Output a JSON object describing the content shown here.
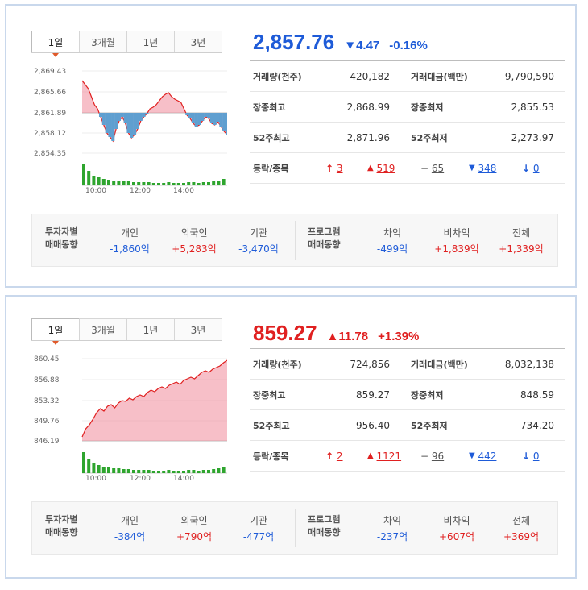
{
  "panels": [
    {
      "tabs": [
        "1일",
        "3개월",
        "1년",
        "3년"
      ],
      "price": "2,857.76",
      "change": "▼4.47",
      "rate": "-0.16%",
      "direction": "down",
      "y_ticks": [
        "2,869.43",
        "2,865.66",
        "2,861.89",
        "2,858.12",
        "2,854.35"
      ],
      "x_ticks": [
        "10:00",
        "12:00",
        "14:00"
      ],
      "rows": [
        {
          "l1": "거래량(천주)",
          "v1": "420,182",
          "l2": "거래대금(백만)",
          "v2": "9,790,590"
        },
        {
          "l1": "장중최고",
          "v1": "2,868.99",
          "l2": "장중최저",
          "v2": "2,855.53"
        },
        {
          "l1": "52주최고",
          "v1": "2,871.96",
          "l2": "52주최저",
          "v2": "2,273.97"
        }
      ],
      "updown": {
        "label": "등락/종목",
        "upper": "3",
        "up": "519",
        "same": "65",
        "down": "348",
        "lower": "0"
      },
      "investor": {
        "label1": "투자자별",
        "label2": "매매동향",
        "items": [
          {
            "name": "개인",
            "value": "-1,860억"
          },
          {
            "name": "외국인",
            "value": "+5,283억"
          },
          {
            "name": "기관",
            "value": "-3,470억"
          }
        ]
      },
      "program": {
        "label1": "프로그램",
        "label2": "매매동향",
        "items": [
          {
            "name": "차익",
            "value": "-499억"
          },
          {
            "name": "비차익",
            "value": "+1,839억"
          },
          {
            "name": "전체",
            "value": "+1,339억"
          }
        ]
      }
    },
    {
      "tabs": [
        "1일",
        "3개월",
        "1년",
        "3년"
      ],
      "price": "859.27",
      "change": "▲11.78",
      "rate": "+1.39%",
      "direction": "up",
      "y_ticks": [
        "860.45",
        "856.88",
        "853.32",
        "849.76",
        "846.19"
      ],
      "x_ticks": [
        "10:00",
        "12:00",
        "14:00"
      ],
      "rows": [
        {
          "l1": "거래량(천주)",
          "v1": "724,856",
          "l2": "거래대금(백만)",
          "v2": "8,032,138"
        },
        {
          "l1": "장중최고",
          "v1": "859.27",
          "l2": "장중최저",
          "v2": "848.59"
        },
        {
          "l1": "52주최고",
          "v1": "956.40",
          "l2": "52주최저",
          "v2": "734.20"
        }
      ],
      "updown": {
        "label": "등락/종목",
        "upper": "2",
        "up": "1121",
        "same": "96",
        "down": "442",
        "lower": "0"
      },
      "investor": {
        "label1": "투자자별",
        "label2": "매매동향",
        "items": [
          {
            "name": "개인",
            "value": "-384억"
          },
          {
            "name": "외국인",
            "value": "+790억"
          },
          {
            "name": "기관",
            "value": "-477억"
          }
        ]
      },
      "program": {
        "label1": "프로그램",
        "label2": "매매동향",
        "items": [
          {
            "name": "차익",
            "value": "-237억"
          },
          {
            "name": "비차익",
            "value": "+607억"
          },
          {
            "name": "전체",
            "value": "+369억"
          }
        ]
      }
    }
  ],
  "colors": {
    "up": "#e02020",
    "down": "#1e5bd8",
    "volume": "#2ea52e",
    "up_fill": "#f08a9a",
    "down_fill": "#5f9fd0",
    "accent": "#e05a2b"
  }
}
